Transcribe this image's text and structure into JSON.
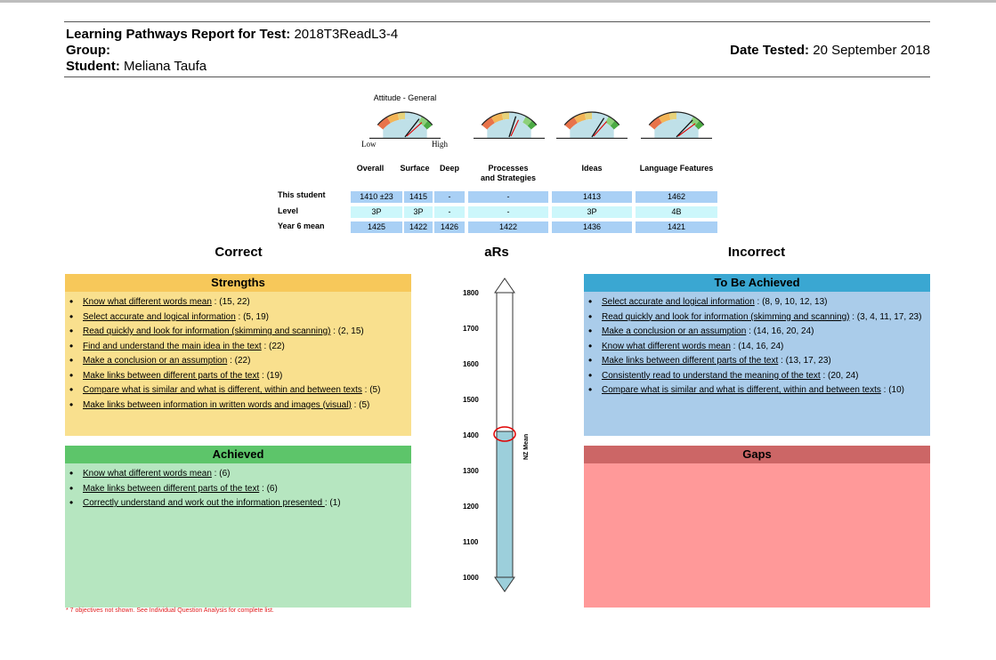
{
  "header": {
    "report_label": "Learning Pathways Report for Test:",
    "test_name": "2018T3ReadL3-4",
    "group_label": "Group:",
    "group_value": "",
    "student_label": "Student:",
    "student_name": "Meliana Taufa",
    "date_label": "Date Tested:",
    "date_value": "20 September 2018"
  },
  "gauges": {
    "title": "Attitude - General",
    "low": "Low",
    "high": "High",
    "items": [
      {
        "level": 0.76
      },
      {
        "level": 0.62
      },
      {
        "level": 0.72
      },
      {
        "level": 0.8
      }
    ]
  },
  "score_table": {
    "columns": [
      "Overall",
      "Surface",
      "Deep",
      "Processes\nand Strategies",
      "Ideas",
      "Language Features"
    ],
    "rows": [
      {
        "label": "This student",
        "cells": [
          "1410 ±23",
          "1415",
          "-",
          "-",
          "1413",
          "1462"
        ]
      },
      {
        "label": "Level",
        "cells": [
          "3P",
          "3P",
          "-",
          "-",
          "3P",
          "4B"
        ]
      },
      {
        "label": "Year 6 mean",
        "cells": [
          "1425",
          "1422",
          "1426",
          "1422",
          "1436",
          "1421"
        ]
      }
    ]
  },
  "sections": {
    "correct": "Correct",
    "ars": "aRs",
    "incorrect": "Incorrect"
  },
  "strengths": {
    "title": "Strengths",
    "items": [
      {
        "text": "Know what different words mean",
        "refs": " : (15, 22)"
      },
      {
        "text": "Select accurate and logical information",
        "refs": " : (5, 19)"
      },
      {
        "text": "Read quickly and look for information (skimming and scanning)",
        "refs": " : (2, 15)"
      },
      {
        "text": "Find and understand the main idea in the text",
        "refs": " : (22)"
      },
      {
        "text": "Make a conclusion or an assumption",
        "refs": " : (22)"
      },
      {
        "text": "Make links between different parts of the text",
        "refs": " : (19)"
      },
      {
        "text": "Compare what is similar and what is different, within and between texts",
        "refs": " : (5)"
      },
      {
        "text": "Make links between information in written words and images (visual)",
        "refs": " : (5)"
      }
    ]
  },
  "achieved": {
    "title": "Achieved",
    "items": [
      {
        "text": "Know what different words mean",
        "refs": " : (6)"
      },
      {
        "text": "Make links between different parts of the text",
        "refs": " : (6)"
      },
      {
        "text": "Correctly understand and work out the information presented ",
        "refs": " : (1)"
      }
    ]
  },
  "to_be_achieved": {
    "title": "To Be Achieved",
    "items": [
      {
        "text": "Select accurate and logical information",
        "refs": " : (8, 9, 10, 12, 13)"
      },
      {
        "text": "Read quickly and look for information (skimming and scanning)",
        "refs": " : (3, 4, 11, 17, 23)"
      },
      {
        "text": "Make a conclusion or an assumption",
        "refs": " : (14, 16, 20, 24)"
      },
      {
        "text": "Know what different words mean",
        "refs": " : (14, 16, 24)"
      },
      {
        "text": "Make links between different parts of the text",
        "refs": " : (13, 17, 23)"
      },
      {
        "text": "Consistently read to understand the meaning of the text",
        "refs": " : (20, 24)"
      },
      {
        "text": "Compare what is similar and what is different, within and between texts",
        "refs": " : (10)"
      }
    ]
  },
  "gaps": {
    "title": "Gaps",
    "items": []
  },
  "footnote": "* 7 objectives not shown. See Individual Question Analysis for complete list.",
  "ars_scale": {
    "ticks": [
      1800,
      1700,
      1600,
      1500,
      1400,
      1300,
      1200,
      1100,
      1000
    ],
    "student_score": 1410,
    "nz_mean_label": "NZ Mean",
    "fill_color": "#9ccfdb"
  },
  "colors": {
    "strengths_header": "#f7c85a",
    "strengths_body": "#f9e08e",
    "achieved_header": "#5dc56a",
    "achieved_body": "#b6e6c0",
    "tba_header": "#3aa7d2",
    "tba_body": "#aaccea",
    "gaps_header": "#cc6666",
    "gaps_body": "#ff9999"
  }
}
